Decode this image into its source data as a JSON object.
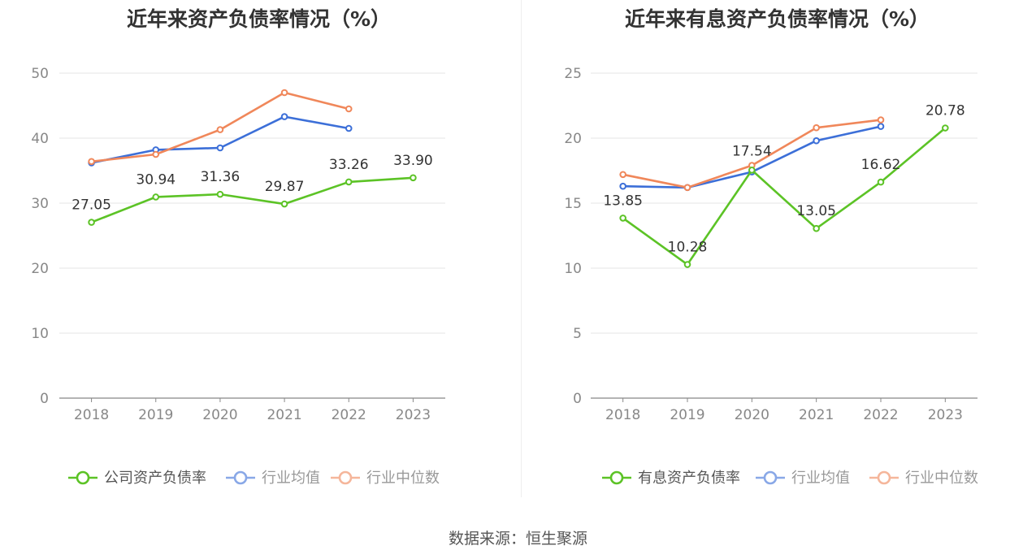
{
  "source": "数据来源：恒生聚源",
  "chart_data": [
    {
      "type": "line",
      "title": "近年来资产负债率情况（%）",
      "x": [
        "2018",
        "2019",
        "2020",
        "2021",
        "2022",
        "2023"
      ],
      "ylim": [
        0,
        50
      ],
      "yticks": [
        0,
        10,
        20,
        30,
        40,
        50
      ],
      "grid": true,
      "legend_position": "bottom",
      "series": [
        {
          "name": "公司资产负债率",
          "color": "#5cc326",
          "values": [
            27.05,
            30.94,
            31.36,
            29.87,
            33.26,
            33.9
          ],
          "labels": [
            "27.05",
            "30.94",
            "31.36",
            "29.87",
            "33.26",
            "33.90"
          ]
        },
        {
          "name": "行业均值",
          "color": "#3c6fd8",
          "values": [
            36.2,
            38.2,
            38.5,
            43.3,
            41.5,
            null
          ]
        },
        {
          "name": "行业中位数",
          "color": "#f0875a",
          "values": [
            36.4,
            37.5,
            41.3,
            47.0,
            44.5,
            null
          ]
        }
      ]
    },
    {
      "type": "line",
      "title": "近年来有息资产负债率情况（%）",
      "x": [
        "2018",
        "2019",
        "2020",
        "2021",
        "2022",
        "2023"
      ],
      "ylim": [
        0,
        25
      ],
      "yticks": [
        0,
        5,
        10,
        15,
        20,
        25
      ],
      "grid": true,
      "legend_position": "bottom",
      "series": [
        {
          "name": "有息资产负债率",
          "color": "#5cc326",
          "values": [
            13.85,
            10.28,
            17.54,
            13.05,
            16.62,
            20.78
          ],
          "labels": [
            "13.85",
            "10.28",
            "17.54",
            "13.05",
            "16.62",
            "20.78"
          ]
        },
        {
          "name": "行业均值",
          "color": "#3c6fd8",
          "values": [
            16.3,
            16.2,
            17.4,
            19.8,
            20.9,
            null
          ]
        },
        {
          "name": "行业中位数",
          "color": "#f0875a",
          "values": [
            17.2,
            16.2,
            17.9,
            20.8,
            21.4,
            null
          ]
        }
      ]
    }
  ]
}
